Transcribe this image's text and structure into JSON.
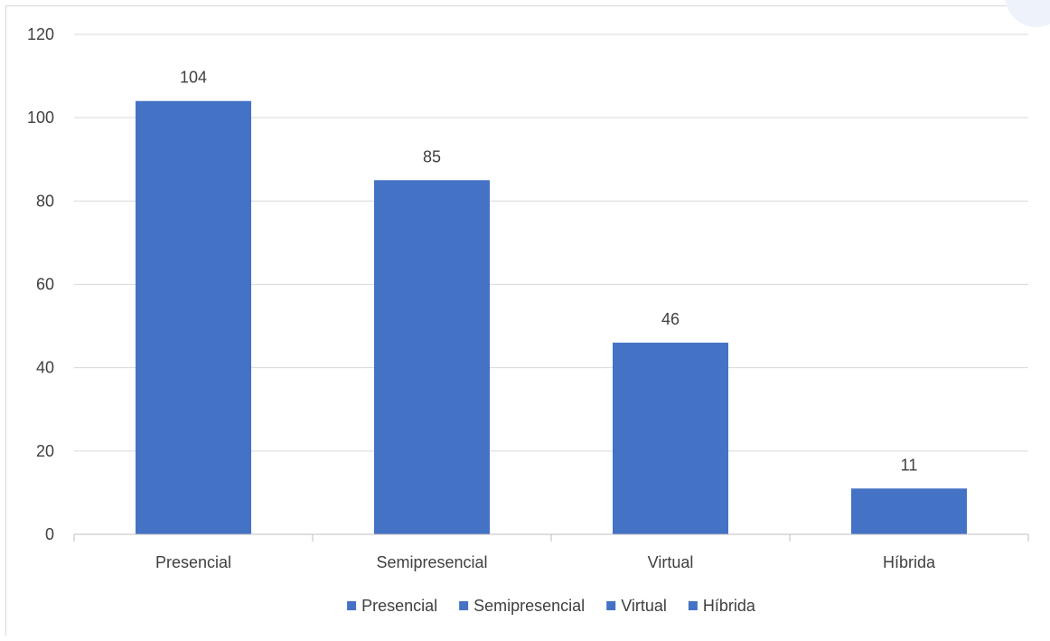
{
  "chart_data": {
    "type": "bar",
    "categories": [
      "Presencial",
      "Semipresencial",
      "Virtual",
      "Híbrida"
    ],
    "values": [
      104,
      85,
      46,
      11
    ],
    "ylim": [
      0,
      120
    ],
    "yticks": [
      0,
      20,
      40,
      60,
      80,
      100,
      120
    ],
    "grid": true,
    "legend_position": "bottom",
    "legend": [
      "Presencial",
      "Semipresencial",
      "Virtual",
      "Híbrida"
    ],
    "bar_color": "#4472C4",
    "title": "",
    "xlabel": "",
    "ylabel": ""
  }
}
